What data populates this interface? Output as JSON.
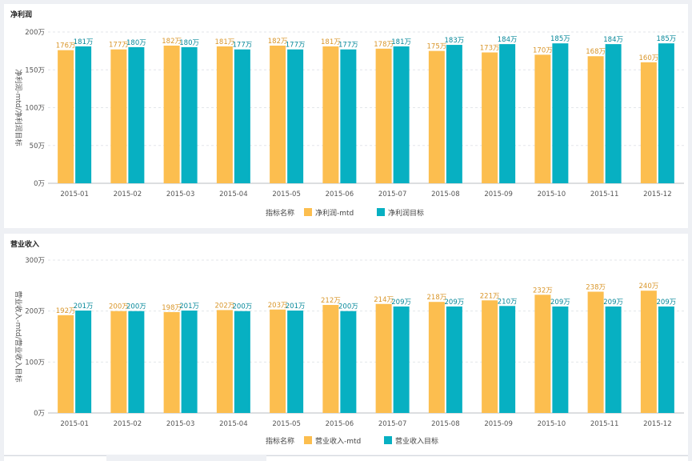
{
  "colors": {
    "mtd": "#fcbe4f",
    "target": "#07b0c2",
    "mtd_label": "#d9962a",
    "target_label": "#06889a"
  },
  "chart_data": [
    {
      "type": "bar",
      "title": "净利润",
      "ylabel": "净利润-mtd/净利润目标",
      "categories": [
        "2015-01",
        "2015-02",
        "2015-03",
        "2015-04",
        "2015-05",
        "2015-06",
        "2015-07",
        "2015-08",
        "2015-09",
        "2015-10",
        "2015-11",
        "2015-12"
      ],
      "ylim": [
        0,
        200
      ],
      "yticks": [
        0,
        50,
        100,
        150,
        200
      ],
      "ytick_labels": [
        "0万",
        "50万",
        "100万",
        "150万",
        "200万"
      ],
      "legend_title": "指标名称",
      "series": [
        {
          "name": "净利润-mtd",
          "values": [
            176,
            177,
            182,
            181,
            182,
            181,
            178,
            175,
            173,
            170,
            168,
            160
          ],
          "labels": [
            "176万",
            "177万",
            "182万",
            "181万",
            "182万",
            "181万",
            "178万",
            "175万",
            "173万",
            "170万",
            "168万",
            "160万"
          ]
        },
        {
          "name": "净利润目标",
          "values": [
            181,
            180,
            180,
            177,
            177,
            177,
            181,
            183,
            184,
            185,
            184,
            185
          ],
          "labels": [
            "181万",
            "180万",
            "180万",
            "177万",
            "177万",
            "177万",
            "181万",
            "183万",
            "184万",
            "185万",
            "184万",
            "185万"
          ]
        }
      ]
    },
    {
      "type": "bar",
      "title": "营业收入",
      "ylabel": "营业收入-mtd/营业收入目标",
      "categories": [
        "2015-01",
        "2015-02",
        "2015-03",
        "2015-04",
        "2015-05",
        "2015-06",
        "2015-07",
        "2015-08",
        "2015-09",
        "2015-10",
        "2015-11",
        "2015-12"
      ],
      "ylim": [
        0,
        300
      ],
      "yticks": [
        0,
        100,
        200,
        300
      ],
      "ytick_labels": [
        "0万",
        "100万",
        "200万",
        "300万"
      ],
      "legend_title": "指标名称",
      "series": [
        {
          "name": "营业收入-mtd",
          "values": [
            192,
            200,
            198,
            202,
            203,
            212,
            214,
            218,
            221,
            232,
            238,
            240
          ],
          "labels": [
            "192万",
            "200万",
            "198万",
            "202万",
            "203万",
            "212万",
            "214万",
            "218万",
            "221万",
            "232万",
            "238万",
            "240万"
          ]
        },
        {
          "name": "营业收入目标",
          "values": [
            201,
            200,
            201,
            200,
            201,
            200,
            209,
            209,
            210,
            209,
            209,
            209
          ],
          "labels": [
            "201万",
            "200万",
            "201万",
            "200万",
            "201万",
            "200万",
            "209万",
            "209万",
            "210万",
            "209万",
            "209万",
            "209万"
          ]
        }
      ]
    }
  ]
}
